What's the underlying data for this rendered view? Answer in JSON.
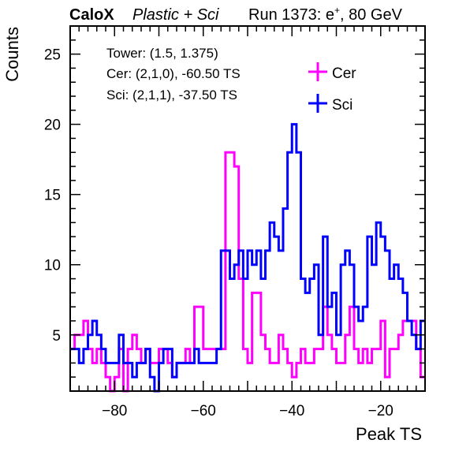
{
  "header": {
    "brand": "CaloX",
    "subtitle": "Plastic + Sci",
    "run": "Run 1373: e",
    "run_sup": "+",
    "run_tail": ", 80 GeV"
  },
  "info": {
    "line1": "Tower: (1.5, 1.375)",
    "line2": "Cer: (2,1,0), -60.50 TS",
    "line3": "Sci: (2,1,1), -37.50 TS"
  },
  "colors": {
    "cer": "#ff00ff",
    "sci": "#0000ff",
    "axis": "#000000"
  },
  "chart_data": {
    "type": "histogram-step",
    "xlabel": "Peak TS",
    "ylabel": "Counts",
    "xlim": [
      -90,
      -10
    ],
    "ylim": [
      1,
      27
    ],
    "x_ticks": [
      -80,
      -60,
      -40,
      -20
    ],
    "x_tick_labels": [
      "−80",
      "−60",
      "−40",
      "−20"
    ],
    "y_ticks": [
      5,
      10,
      15,
      20,
      25
    ],
    "y_tick_labels": [
      "5",
      "10",
      "15",
      "20",
      "25"
    ],
    "bin_width": 1,
    "x_start": -90,
    "legend_position": "top-right",
    "series": [
      {
        "name": "Cer",
        "color": "#ff00ff",
        "counts": [
          4,
          5,
          5,
          6,
          4,
          3,
          4,
          3,
          2,
          1,
          2,
          4,
          1,
          4,
          5,
          4,
          3,
          4,
          3,
          3,
          4,
          4,
          3,
          2,
          3,
          3,
          4,
          3,
          7,
          7,
          4,
          4,
          4,
          4,
          4,
          18,
          18,
          17,
          9,
          4,
          3,
          8,
          8,
          5,
          4,
          3,
          3,
          5,
          4,
          3,
          2,
          3,
          4,
          3,
          3,
          4,
          4,
          7,
          5,
          4,
          3,
          3,
          5,
          7,
          4,
          3,
          4,
          3,
          4,
          4,
          6,
          2,
          4,
          4,
          5,
          6,
          6,
          6,
          4,
          2
        ]
      },
      {
        "name": "Sci",
        "color": "#0000ff",
        "counts": [
          4,
          4,
          3,
          4,
          5,
          6,
          5,
          4,
          3,
          3,
          3,
          5,
          3,
          3,
          2,
          3,
          3,
          4,
          2,
          1,
          3,
          4,
          4,
          2,
          3,
          3,
          3,
          3,
          4,
          3,
          3,
          3,
          3,
          4,
          11,
          11,
          9,
          10,
          11,
          9,
          11,
          10,
          11,
          9,
          11,
          13,
          12,
          11,
          14,
          18,
          20,
          18,
          9,
          8,
          9,
          10,
          5,
          12,
          7,
          8,
          5,
          10,
          11,
          10,
          7,
          6,
          7,
          12,
          10,
          13,
          12,
          11,
          9,
          10,
          9,
          8,
          6,
          5,
          4,
          6
        ]
      }
    ]
  }
}
